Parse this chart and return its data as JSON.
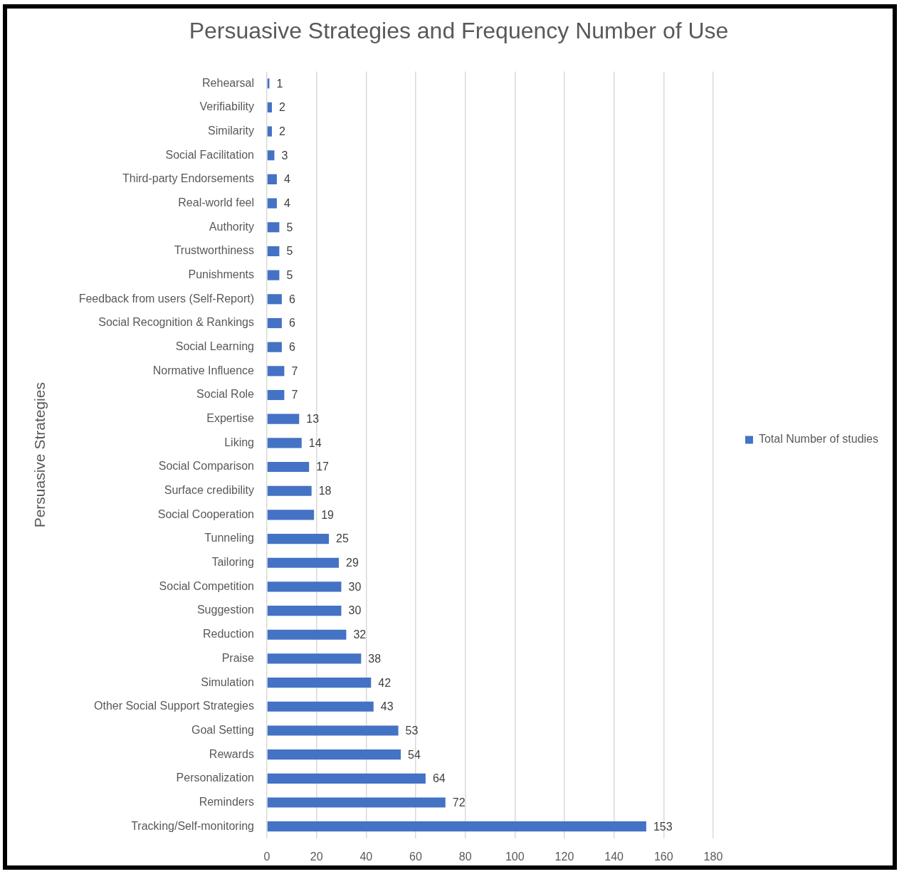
{
  "chart_data": {
    "type": "bar",
    "orientation": "horizontal",
    "title": "Persuasive Strategies and Frequency Number of Use",
    "ylabel": "Persuasive Strategies",
    "categories": [
      "Rehearsal",
      "Verifiability",
      "Similarity",
      "Social Facilitation",
      "Third-party Endorsements",
      "Real-world feel",
      "Authority",
      "Trustworthiness",
      "Punishments",
      "Feedback from users (Self-Report)",
      "Social Recognition & Rankings",
      "Social Learning",
      "Normative Influence",
      "Social Role",
      "Expertise",
      "Liking",
      "Social Comparison",
      "Surface credibility",
      "Social Cooperation",
      "Tunneling",
      "Tailoring",
      "Social Competition",
      "Suggestion",
      "Reduction",
      "Praise",
      "Simulation",
      "Other Social Support Strategies",
      "Goal Setting",
      "Rewards",
      "Personalization",
      "Reminders",
      "Tracking/Self-monitoring"
    ],
    "series": [
      {
        "name": "Total Number of studies",
        "color": "#4472c4",
        "values": [
          1,
          2,
          2,
          3,
          4,
          4,
          5,
          5,
          5,
          6,
          6,
          6,
          7,
          7,
          13,
          14,
          17,
          18,
          19,
          25,
          29,
          30,
          30,
          32,
          38,
          42,
          43,
          53,
          54,
          64,
          72,
          153
        ]
      }
    ],
    "xlim": [
      0,
      180
    ],
    "xticks": [
      0,
      20,
      40,
      60,
      80,
      100,
      120,
      140,
      160,
      180
    ],
    "grid": "x",
    "legend": "right",
    "data_labels": true
  }
}
